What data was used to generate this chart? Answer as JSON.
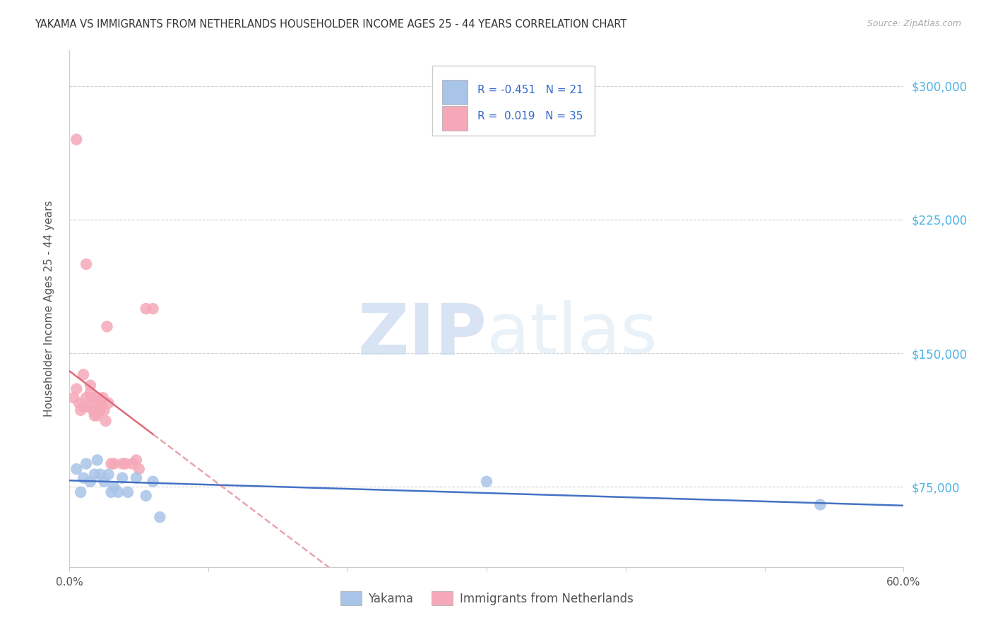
{
  "title": "YAKAMA VS IMMIGRANTS FROM NETHERLANDS HOUSEHOLDER INCOME AGES 25 - 44 YEARS CORRELATION CHART",
  "source": "Source: ZipAtlas.com",
  "ylabel": "Householder Income Ages 25 - 44 years",
  "yticks": [
    75000,
    150000,
    225000,
    300000
  ],
  "ytick_labels": [
    "$75,000",
    "$150,000",
    "$225,000",
    "$300,000"
  ],
  "xmin": 0.0,
  "xmax": 0.6,
  "ymin": 30000,
  "ymax": 320000,
  "yakama_R": -0.451,
  "yakama_N": 21,
  "neth_R": 0.019,
  "neth_N": 35,
  "yakama_color": "#a8c4e8",
  "neth_color": "#f5a8b8",
  "yakama_line_color": "#4472c4",
  "neth_line_color": "#e06878",
  "right_axis_color": "#4db3e6",
  "yakama_x": [
    0.005,
    0.008,
    0.01,
    0.012,
    0.015,
    0.018,
    0.02,
    0.022,
    0.025,
    0.028,
    0.03,
    0.032,
    0.035,
    0.038,
    0.042,
    0.048,
    0.055,
    0.06,
    0.065,
    0.3,
    0.54
  ],
  "yakama_y": [
    85000,
    72000,
    80000,
    88000,
    78000,
    82000,
    90000,
    82000,
    78000,
    82000,
    72000,
    75000,
    72000,
    80000,
    72000,
    80000,
    70000,
    78000,
    58000,
    78000,
    65000
  ],
  "neth_x": [
    0.003,
    0.005,
    0.007,
    0.008,
    0.01,
    0.01,
    0.012,
    0.013,
    0.015,
    0.015,
    0.016,
    0.017,
    0.018,
    0.018,
    0.02,
    0.02,
    0.022,
    0.022,
    0.023,
    0.024,
    0.025,
    0.026,
    0.027,
    0.028,
    0.03,
    0.032,
    0.038,
    0.04,
    0.045,
    0.048,
    0.05,
    0.055,
    0.06,
    0.005,
    0.012
  ],
  "neth_y": [
    125000,
    130000,
    122000,
    118000,
    120000,
    138000,
    125000,
    120000,
    128000,
    132000,
    125000,
    118000,
    122000,
    115000,
    125000,
    115000,
    122000,
    118000,
    120000,
    125000,
    118000,
    112000,
    165000,
    122000,
    88000,
    88000,
    88000,
    88000,
    88000,
    90000,
    85000,
    175000,
    175000,
    270000,
    200000
  ],
  "watermark_zip": "ZIP",
  "watermark_atlas": "atlas",
  "background_color": "#ffffff",
  "grid_color": "#d0d0d0"
}
